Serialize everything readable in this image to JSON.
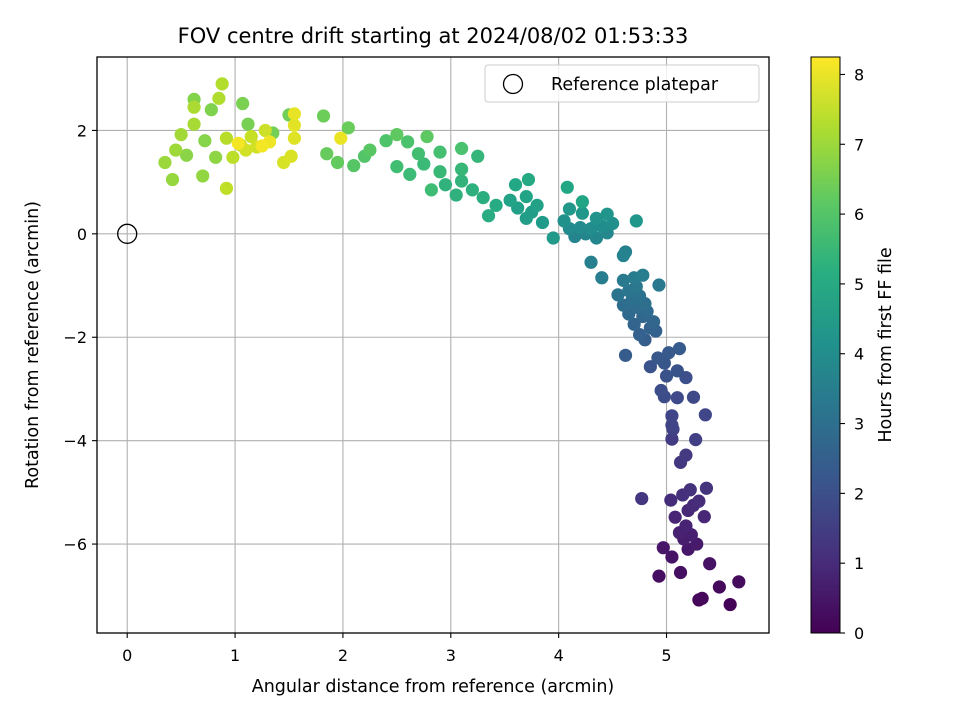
{
  "chart_data": {
    "type": "scatter",
    "title": "FOV centre drift starting at 2024/08/02 01:53:33",
    "xlabel": "Angular distance from reference (arcmin)",
    "ylabel": "Rotation from reference (arcmin)",
    "xlim": [
      -0.28,
      5.95
    ],
    "ylim": [
      -7.72,
      3.42
    ],
    "xticks": [
      0,
      1,
      2,
      3,
      4,
      5
    ],
    "yticks": [
      -6,
      -4,
      -2,
      0,
      2
    ],
    "x_tick_labels": [
      "0",
      "1",
      "2",
      "3",
      "4",
      "5"
    ],
    "y_tick_labels": [
      "−6",
      "−4",
      "−2",
      "0",
      "2"
    ],
    "grid": true,
    "colormap": "viridis",
    "colorbar": {
      "label": "Hours from first FF file",
      "range": [
        0,
        8.25
      ],
      "ticks": [
        0,
        1,
        2,
        3,
        4,
        5,
        6,
        7,
        8
      ],
      "tick_labels": [
        "0",
        "1",
        "2",
        "3",
        "4",
        "5",
        "6",
        "7",
        "8"
      ]
    },
    "legend": {
      "position": "top-right",
      "entries": [
        {
          "label": "Reference platepar",
          "marker": "open-circle"
        }
      ]
    },
    "reference_point": {
      "x": 0,
      "y": 0
    },
    "points": [
      {
        "x": 5.59,
        "y": -7.17,
        "c": 0.05
      },
      {
        "x": 5.3,
        "y": -7.08,
        "c": 0.1
      },
      {
        "x": 5.33,
        "y": -7.05,
        "c": 0.15
      },
      {
        "x": 5.49,
        "y": -6.83,
        "c": 0.2
      },
      {
        "x": 5.67,
        "y": -6.73,
        "c": 0.25
      },
      {
        "x": 4.93,
        "y": -6.62,
        "c": 0.3
      },
      {
        "x": 5.13,
        "y": -6.55,
        "c": 0.35
      },
      {
        "x": 5.4,
        "y": -6.38,
        "c": 0.4
      },
      {
        "x": 5.05,
        "y": -6.25,
        "c": 0.45
      },
      {
        "x": 4.97,
        "y": -6.07,
        "c": 0.5
      },
      {
        "x": 5.2,
        "y": -6.1,
        "c": 0.55
      },
      {
        "x": 5.28,
        "y": -6.0,
        "c": 0.6
      },
      {
        "x": 5.16,
        "y": -5.9,
        "c": 0.65
      },
      {
        "x": 5.23,
        "y": -5.82,
        "c": 0.7
      },
      {
        "x": 5.12,
        "y": -5.78,
        "c": 0.75
      },
      {
        "x": 5.18,
        "y": -5.65,
        "c": 0.8
      },
      {
        "x": 5.08,
        "y": -5.48,
        "c": 0.85
      },
      {
        "x": 5.35,
        "y": -5.47,
        "c": 0.9
      },
      {
        "x": 5.2,
        "y": -5.35,
        "c": 0.95
      },
      {
        "x": 5.25,
        "y": -5.25,
        "c": 1.0
      },
      {
        "x": 5.04,
        "y": -5.15,
        "c": 1.05
      },
      {
        "x": 5.3,
        "y": -5.17,
        "c": 1.1
      },
      {
        "x": 5.15,
        "y": -5.05,
        "c": 1.15
      },
      {
        "x": 5.22,
        "y": -4.95,
        "c": 1.2
      },
      {
        "x": 5.37,
        "y": -4.92,
        "c": 1.25
      },
      {
        "x": 4.77,
        "y": -5.12,
        "c": 1.3
      },
      {
        "x": 5.13,
        "y": -4.42,
        "c": 1.35
      },
      {
        "x": 5.18,
        "y": -4.28,
        "c": 1.4
      },
      {
        "x": 5.05,
        "y": -3.97,
        "c": 1.45
      },
      {
        "x": 5.27,
        "y": -3.98,
        "c": 1.55
      },
      {
        "x": 5.06,
        "y": -3.78,
        "c": 1.6
      },
      {
        "x": 5.05,
        "y": -3.7,
        "c": 1.65
      },
      {
        "x": 5.05,
        "y": -3.52,
        "c": 1.7
      },
      {
        "x": 5.36,
        "y": -3.5,
        "c": 1.75
      },
      {
        "x": 5.25,
        "y": -3.16,
        "c": 1.8
      },
      {
        "x": 5.1,
        "y": -3.17,
        "c": 1.85
      },
      {
        "x": 4.98,
        "y": -3.15,
        "c": 1.9
      },
      {
        "x": 4.95,
        "y": -3.03,
        "c": 1.95
      },
      {
        "x": 5.18,
        "y": -2.78,
        "c": 2.0
      },
      {
        "x": 5.0,
        "y": -2.75,
        "c": 2.05
      },
      {
        "x": 5.1,
        "y": -2.65,
        "c": 2.1
      },
      {
        "x": 4.85,
        "y": -2.57,
        "c": 2.15
      },
      {
        "x": 4.98,
        "y": -2.5,
        "c": 2.2
      },
      {
        "x": 4.92,
        "y": -2.4,
        "c": 2.25
      },
      {
        "x": 5.02,
        "y": -2.3,
        "c": 2.3
      },
      {
        "x": 5.12,
        "y": -2.22,
        "c": 2.35
      },
      {
        "x": 4.62,
        "y": -2.35,
        "c": 2.4
      },
      {
        "x": 4.8,
        "y": -2.05,
        "c": 2.45
      },
      {
        "x": 4.9,
        "y": -1.88,
        "c": 2.5
      },
      {
        "x": 4.75,
        "y": -1.95,
        "c": 2.55
      },
      {
        "x": 4.85,
        "y": -1.82,
        "c": 2.6
      },
      {
        "x": 4.7,
        "y": -1.75,
        "c": 2.65
      },
      {
        "x": 4.88,
        "y": -1.7,
        "c": 2.7
      },
      {
        "x": 4.78,
        "y": -1.6,
        "c": 2.75
      },
      {
        "x": 4.65,
        "y": -1.55,
        "c": 2.8
      },
      {
        "x": 4.82,
        "y": -1.5,
        "c": 2.85
      },
      {
        "x": 4.72,
        "y": -1.42,
        "c": 2.9
      },
      {
        "x": 4.6,
        "y": -1.38,
        "c": 2.95
      },
      {
        "x": 4.8,
        "y": -1.35,
        "c": 3.0
      },
      {
        "x": 4.68,
        "y": -1.28,
        "c": 3.05
      },
      {
        "x": 4.75,
        "y": -1.2,
        "c": 3.1
      },
      {
        "x": 4.55,
        "y": -1.18,
        "c": 3.15
      },
      {
        "x": 4.65,
        "y": -1.1,
        "c": 3.2
      },
      {
        "x": 4.72,
        "y": -1.02,
        "c": 3.25
      },
      {
        "x": 4.93,
        "y": -0.99,
        "c": 3.3
      },
      {
        "x": 4.6,
        "y": -0.9,
        "c": 3.35
      },
      {
        "x": 4.7,
        "y": -0.85,
        "c": 3.4
      },
      {
        "x": 4.78,
        "y": -0.8,
        "c": 3.45
      },
      {
        "x": 4.4,
        "y": -0.85,
        "c": 3.5
      },
      {
        "x": 4.3,
        "y": -0.55,
        "c": 3.55
      },
      {
        "x": 4.62,
        "y": -0.35,
        "c": 3.6
      },
      {
        "x": 4.6,
        "y": -0.42,
        "c": 3.65
      },
      {
        "x": 4.15,
        "y": -0.05,
        "c": 3.7
      },
      {
        "x": 4.25,
        "y": 0.0,
        "c": 3.75
      },
      {
        "x": 4.35,
        "y": -0.08,
        "c": 3.8
      },
      {
        "x": 4.45,
        "y": 0.02,
        "c": 3.85
      },
      {
        "x": 4.1,
        "y": 0.1,
        "c": 3.9
      },
      {
        "x": 4.2,
        "y": 0.12,
        "c": 3.95
      },
      {
        "x": 4.3,
        "y": 0.1,
        "c": 4.0
      },
      {
        "x": 4.4,
        "y": 0.15,
        "c": 4.05
      },
      {
        "x": 4.5,
        "y": 0.2,
        "c": 4.1
      },
      {
        "x": 4.05,
        "y": 0.25,
        "c": 4.15
      },
      {
        "x": 4.35,
        "y": 0.3,
        "c": 4.2
      },
      {
        "x": 4.45,
        "y": 0.38,
        "c": 4.25
      },
      {
        "x": 4.72,
        "y": 0.25,
        "c": 4.3
      },
      {
        "x": 4.22,
        "y": 0.4,
        "c": 4.35
      },
      {
        "x": 4.1,
        "y": 0.48,
        "c": 4.4
      },
      {
        "x": 3.95,
        "y": -0.08,
        "c": 4.45
      },
      {
        "x": 3.85,
        "y": 0.22,
        "c": 4.5
      },
      {
        "x": 3.7,
        "y": 0.3,
        "c": 4.55
      },
      {
        "x": 3.75,
        "y": 0.42,
        "c": 4.6
      },
      {
        "x": 3.62,
        "y": 0.5,
        "c": 4.65
      },
      {
        "x": 3.8,
        "y": 0.55,
        "c": 4.7
      },
      {
        "x": 3.55,
        "y": 0.65,
        "c": 4.75
      },
      {
        "x": 3.7,
        "y": 0.72,
        "c": 4.8
      },
      {
        "x": 4.22,
        "y": 0.62,
        "c": 4.85
      },
      {
        "x": 4.08,
        "y": 0.9,
        "c": 4.9
      },
      {
        "x": 3.6,
        "y": 0.95,
        "c": 4.95
      },
      {
        "x": 3.72,
        "y": 1.05,
        "c": 5.0
      },
      {
        "x": 3.42,
        "y": 0.55,
        "c": 5.05
      },
      {
        "x": 3.35,
        "y": 0.35,
        "c": 5.1
      },
      {
        "x": 3.3,
        "y": 0.7,
        "c": 5.15
      },
      {
        "x": 3.2,
        "y": 0.85,
        "c": 5.2
      },
      {
        "x": 3.05,
        "y": 0.75,
        "c": 5.25
      },
      {
        "x": 2.95,
        "y": 0.95,
        "c": 5.3
      },
      {
        "x": 3.1,
        "y": 1.02,
        "c": 5.35
      },
      {
        "x": 3.25,
        "y": 1.5,
        "c": 5.4
      },
      {
        "x": 3.1,
        "y": 1.25,
        "c": 5.45
      },
      {
        "x": 2.9,
        "y": 1.2,
        "c": 5.5
      },
      {
        "x": 2.75,
        "y": 1.35,
        "c": 5.55
      },
      {
        "x": 2.62,
        "y": 1.15,
        "c": 5.6
      },
      {
        "x": 2.82,
        "y": 0.85,
        "c": 5.65
      },
      {
        "x": 2.5,
        "y": 1.3,
        "c": 5.7
      },
      {
        "x": 2.7,
        "y": 1.55,
        "c": 5.75
      },
      {
        "x": 2.9,
        "y": 1.58,
        "c": 5.8
      },
      {
        "x": 3.1,
        "y": 1.65,
        "c": 5.85
      },
      {
        "x": 2.6,
        "y": 1.78,
        "c": 5.9
      },
      {
        "x": 2.4,
        "y": 1.8,
        "c": 5.95
      },
      {
        "x": 2.2,
        "y": 1.5,
        "c": 6.0
      },
      {
        "x": 2.1,
        "y": 1.32,
        "c": 6.05
      },
      {
        "x": 2.25,
        "y": 1.62,
        "c": 6.1
      },
      {
        "x": 2.78,
        "y": 1.88,
        "c": 6.15
      },
      {
        "x": 2.5,
        "y": 1.92,
        "c": 6.2
      },
      {
        "x": 1.95,
        "y": 1.38,
        "c": 6.25
      },
      {
        "x": 1.85,
        "y": 1.55,
        "c": 6.3
      },
      {
        "x": 2.05,
        "y": 2.05,
        "c": 6.35
      },
      {
        "x": 1.82,
        "y": 2.28,
        "c": 6.4
      },
      {
        "x": 1.5,
        "y": 2.3,
        "c": 6.45
      },
      {
        "x": 1.35,
        "y": 1.95,
        "c": 6.5
      },
      {
        "x": 1.12,
        "y": 2.12,
        "c": 6.55
      },
      {
        "x": 1.07,
        "y": 2.52,
        "c": 6.6
      },
      {
        "x": 0.78,
        "y": 2.4,
        "c": 6.65
      },
      {
        "x": 0.62,
        "y": 2.6,
        "c": 6.7
      },
      {
        "x": 0.72,
        "y": 1.8,
        "c": 6.75
      },
      {
        "x": 0.55,
        "y": 1.52,
        "c": 6.8
      },
      {
        "x": 0.82,
        "y": 1.48,
        "c": 6.85
      },
      {
        "x": 0.7,
        "y": 1.12,
        "c": 6.9
      },
      {
        "x": 0.42,
        "y": 1.05,
        "c": 6.95
      },
      {
        "x": 0.35,
        "y": 1.38,
        "c": 7.0
      },
      {
        "x": 0.45,
        "y": 1.62,
        "c": 7.05
      },
      {
        "x": 0.5,
        "y": 1.92,
        "c": 7.1
      },
      {
        "x": 0.62,
        "y": 2.12,
        "c": 7.15
      },
      {
        "x": 0.62,
        "y": 2.45,
        "c": 7.2
      },
      {
        "x": 0.85,
        "y": 2.62,
        "c": 7.25
      },
      {
        "x": 0.88,
        "y": 2.9,
        "c": 7.3
      },
      {
        "x": 0.92,
        "y": 1.85,
        "c": 7.35
      },
      {
        "x": 0.98,
        "y": 1.48,
        "c": 7.4
      },
      {
        "x": 0.92,
        "y": 0.88,
        "c": 7.45
      },
      {
        "x": 1.05,
        "y": 1.72,
        "c": 7.5
      },
      {
        "x": 1.15,
        "y": 1.88,
        "c": 7.55
      },
      {
        "x": 1.28,
        "y": 2.0,
        "c": 7.6
      },
      {
        "x": 1.2,
        "y": 1.68,
        "c": 7.65
      },
      {
        "x": 1.1,
        "y": 1.62,
        "c": 7.7
      },
      {
        "x": 1.45,
        "y": 1.38,
        "c": 7.75
      },
      {
        "x": 1.52,
        "y": 1.5,
        "c": 7.8
      },
      {
        "x": 1.55,
        "y": 1.85,
        "c": 7.85
      },
      {
        "x": 1.55,
        "y": 2.1,
        "c": 7.9
      },
      {
        "x": 1.55,
        "y": 2.32,
        "c": 7.95
      },
      {
        "x": 1.98,
        "y": 1.85,
        "c": 8.0
      },
      {
        "x": 1.32,
        "y": 1.78,
        "c": 8.05
      },
      {
        "x": 1.25,
        "y": 1.7,
        "c": 8.1
      },
      {
        "x": 1.03,
        "y": 1.75,
        "c": 8.15
      }
    ]
  }
}
